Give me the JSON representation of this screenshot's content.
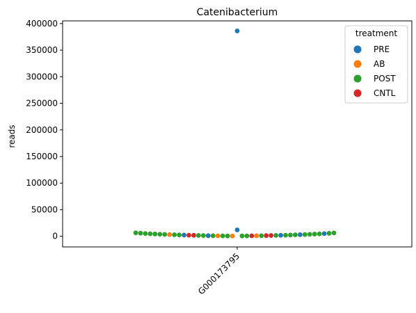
{
  "chart_data": {
    "type": "scatter",
    "title": "Catenibacterium",
    "xlabel": "",
    "ylabel": "reads",
    "categories": [
      "G000173795"
    ],
    "ylim": [
      -20000,
      405000
    ],
    "yticks": [
      0,
      50000,
      100000,
      150000,
      200000,
      250000,
      300000,
      350000,
      400000
    ],
    "grid": false,
    "legend": {
      "title": "treatment",
      "placement": "top-right",
      "entries": [
        {
          "name": "PRE",
          "color": "#1f77b4"
        },
        {
          "name": "AB",
          "color": "#ff7f0e"
        },
        {
          "name": "POST",
          "color": "#2ca02c"
        },
        {
          "name": "CNTL",
          "color": "#d62728"
        }
      ]
    },
    "points": [
      {
        "g": "PRE",
        "y": 386000,
        "o": 0
      },
      {
        "g": "PRE",
        "y": 12000,
        "o": 0
      },
      {
        "g": "POST",
        "y": 6500,
        "o": -21
      },
      {
        "g": "POST",
        "y": 5800,
        "o": -20
      },
      {
        "g": "POST",
        "y": 5200,
        "o": -19
      },
      {
        "g": "POST",
        "y": 4700,
        "o": -18
      },
      {
        "g": "POST",
        "y": 4300,
        "o": -17
      },
      {
        "g": "POST",
        "y": 3900,
        "o": -16
      },
      {
        "g": "POST",
        "y": 3500,
        "o": -15
      },
      {
        "g": "AB",
        "y": 3200,
        "o": -14
      },
      {
        "g": "POST",
        "y": 2900,
        "o": -13
      },
      {
        "g": "POST",
        "y": 2600,
        "o": -12
      },
      {
        "g": "PRE",
        "y": 2300,
        "o": -11
      },
      {
        "g": "CNTL",
        "y": 2100,
        "o": -10
      },
      {
        "g": "CNTL",
        "y": 1800,
        "o": -9
      },
      {
        "g": "POST",
        "y": 1600,
        "o": -8
      },
      {
        "g": "POST",
        "y": 1400,
        "o": -7
      },
      {
        "g": "PRE",
        "y": 1200,
        "o": -6
      },
      {
        "g": "POST",
        "y": 1000,
        "o": -5
      },
      {
        "g": "AB",
        "y": 900,
        "o": -4
      },
      {
        "g": "POST",
        "y": 800,
        "o": -3
      },
      {
        "g": "POST",
        "y": 700,
        "o": -2
      },
      {
        "g": "AB",
        "y": 600,
        "o": -1
      },
      {
        "g": "POST",
        "y": 700,
        "o": 1
      },
      {
        "g": "POST",
        "y": 800,
        "o": 2
      },
      {
        "g": "CNTL",
        "y": 900,
        "o": 3
      },
      {
        "g": "AB",
        "y": 1000,
        "o": 4
      },
      {
        "g": "POST",
        "y": 1100,
        "o": 5
      },
      {
        "g": "CNTL",
        "y": 1300,
        "o": 6
      },
      {
        "g": "CNTL",
        "y": 1500,
        "o": 7
      },
      {
        "g": "POST",
        "y": 1700,
        "o": 8
      },
      {
        "g": "PRE",
        "y": 1900,
        "o": 9
      },
      {
        "g": "POST",
        "y": 2100,
        "o": 10
      },
      {
        "g": "POST",
        "y": 2400,
        "o": 11
      },
      {
        "g": "POST",
        "y": 2700,
        "o": 12
      },
      {
        "g": "PRE",
        "y": 3000,
        "o": 13
      },
      {
        "g": "POST",
        "y": 3300,
        "o": 14
      },
      {
        "g": "POST",
        "y": 3700,
        "o": 15
      },
      {
        "g": "POST",
        "y": 4100,
        "o": 16
      },
      {
        "g": "POST",
        "y": 4500,
        "o": 17
      },
      {
        "g": "PRE",
        "y": 5000,
        "o": 18
      },
      {
        "g": "POST",
        "y": 5600,
        "o": 19
      },
      {
        "g": "POST",
        "y": 6300,
        "o": 20
      }
    ]
  }
}
